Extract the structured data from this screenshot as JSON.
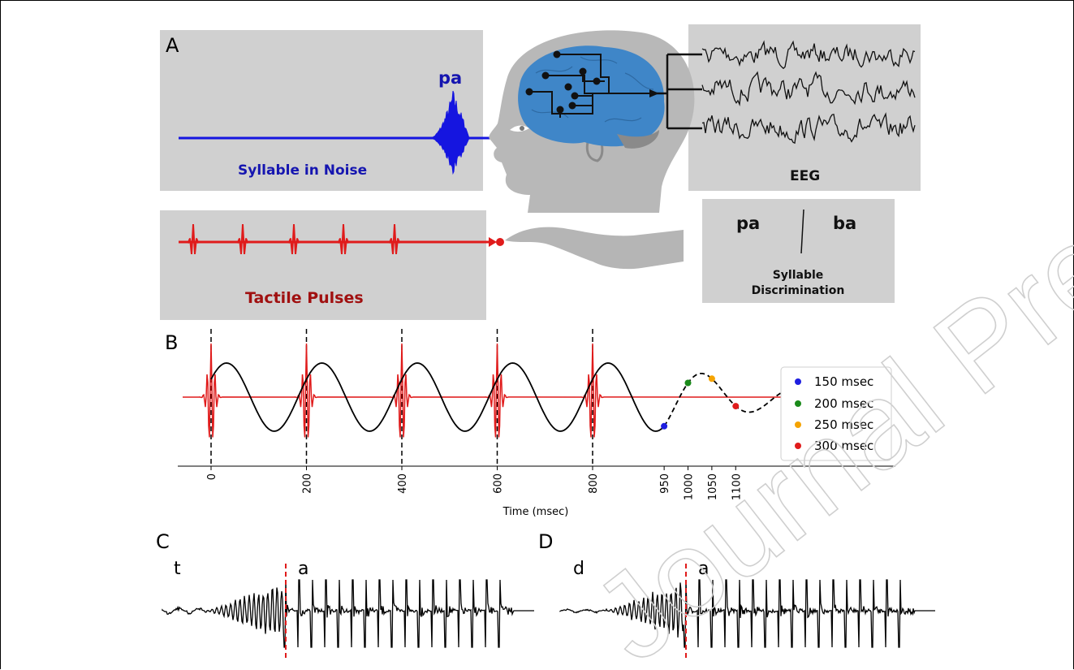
{
  "panels": {
    "a": {
      "letter": "A",
      "syllable_label": "pa",
      "syllable_caption": "Syllable in Noise",
      "tactile_caption": "Tactile Pulses",
      "eeg_caption": "EEG",
      "choice_left": "pa",
      "choice_right": "ba",
      "discrimination_line1": "Syllable",
      "discrimination_line2": "Discrimination"
    },
    "b": {
      "letter": "B",
      "xlabel": "Time (msec)",
      "ticks": [
        "0",
        "200",
        "400",
        "600",
        "800",
        "950",
        "1000",
        "1050",
        "1100"
      ],
      "pulse_times": [
        0,
        200,
        400,
        600,
        800
      ],
      "legend": [
        {
          "label": "150 msec",
          "color": "#1f1fe0",
          "time": 950
        },
        {
          "label": "200 msec",
          "color": "#1a8a1a",
          "time": 1000
        },
        {
          "label": "250 msec",
          "color": "#f5a300",
          "time": 1050
        },
        {
          "label": "300 msec",
          "color": "#e01b1b",
          "time": 1100
        }
      ]
    },
    "c": {
      "letter": "C",
      "left_phoneme": "t",
      "right_phoneme": "a"
    },
    "d": {
      "letter": "D",
      "left_phoneme": "d",
      "right_phoneme": "a"
    }
  },
  "watermark": "Journal Pre-Proof",
  "colors": {
    "blue": "#1515e0",
    "red": "#e01b1b",
    "panel_gray": "#d0d0d0",
    "brain": "#3f86c8",
    "head": "#b5b5b5"
  }
}
